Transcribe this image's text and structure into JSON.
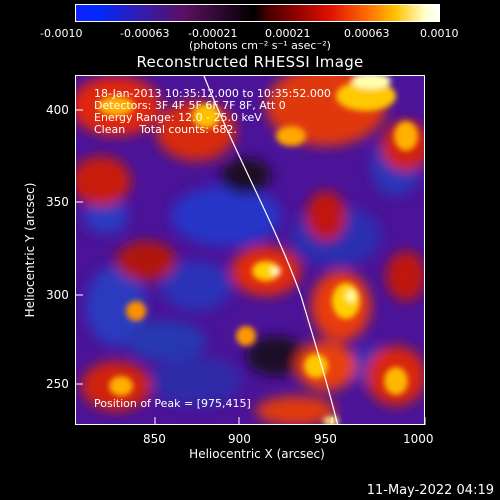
{
  "colorbar": {
    "ticks": [
      "-0.0010",
      "-0.00063",
      "-0.00021",
      "0.00021",
      "0.00063",
      "0.0010"
    ],
    "units": "(photons cm⁻² s⁻¹ asec⁻²)"
  },
  "plot": {
    "title": "Reconstructed RHESSI Image",
    "info_lines": [
      "18-Jan-2013 10:35:12.000 to 10:35:52.000",
      "Detectors: 3F 4F 5F 6F 7F 8F, Att 0",
      "Energy Range: 12.0 - 25.0 keV",
      "Clean    Total counts: 682."
    ],
    "peak_label": "Position of Peak = [975,415]",
    "xlabel": "Heliocentric X (arcsec)",
    "ylabel": "Heliocentric Y (arcsec)",
    "xticks": [
      "850",
      "900",
      "950",
      "1000"
    ],
    "yticks": [
      "250",
      "300",
      "350",
      "400"
    ],
    "xlim": [
      810,
      1000
    ],
    "ylim": [
      230,
      420
    ]
  },
  "footer": {
    "timestamp": "11-May-2022 04:19"
  }
}
